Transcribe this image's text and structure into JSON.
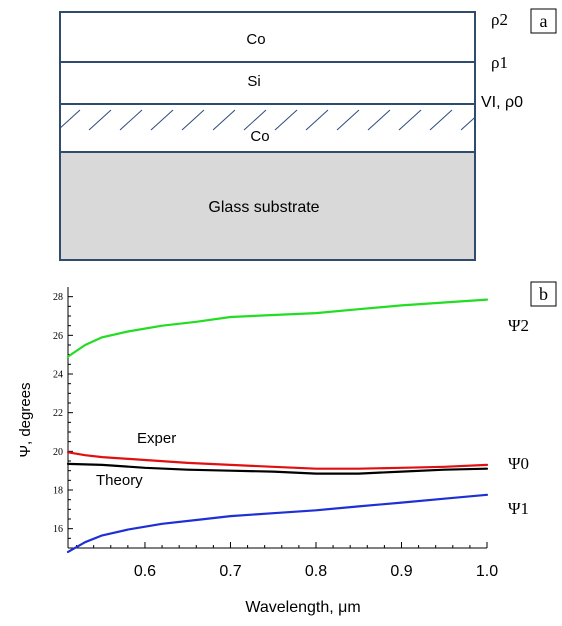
{
  "panel_a": {
    "tag": "a",
    "layers": [
      {
        "name": "Co"
      },
      {
        "name": "Si"
      },
      {
        "name": "Co"
      },
      {
        "name": "Glass substrate"
      }
    ],
    "interface_labels": [
      "ρ2",
      "ρ1",
      "VI, ρ0"
    ],
    "colors": {
      "border": "#2f4b6e",
      "substrate": "#d9d9d9",
      "hatch": "#2a4b7c"
    }
  },
  "panel_b": {
    "tag": "b",
    "ylabel": "Ψ, degrees",
    "xlabel": "Wavelength, μm",
    "annotations": {
      "exper": "Exper",
      "theory": "Theory"
    },
    "series_labels": [
      "Ψ2",
      "Ψ0",
      "Ψ1"
    ]
  },
  "chart_data": {
    "type": "line",
    "title": "",
    "xlabel": "Wavelength, μm",
    "ylabel": "Ψ, degrees",
    "xlim": [
      0.51,
      1.0
    ],
    "ylim": [
      15,
      28.5
    ],
    "x_ticks": [
      "0.6",
      "0.7",
      "0.8",
      "0.9",
      "1.0"
    ],
    "y_ticks": [
      "16",
      "18",
      "20",
      "22",
      "24",
      "26",
      "28"
    ],
    "grid": false,
    "series": [
      {
        "name": "Ψ2",
        "color": "#22dd22",
        "x": [
          0.51,
          0.53,
          0.55,
          0.58,
          0.62,
          0.66,
          0.7,
          0.75,
          0.8,
          0.85,
          0.9,
          0.95,
          1.0
        ],
        "y": [
          24.9,
          25.5,
          25.9,
          26.2,
          26.5,
          26.7,
          26.95,
          27.05,
          27.15,
          27.35,
          27.55,
          27.7,
          27.85
        ]
      },
      {
        "name": "Exper",
        "color": "#e01010",
        "x": [
          0.51,
          0.53,
          0.55,
          0.6,
          0.65,
          0.7,
          0.75,
          0.8,
          0.85,
          0.9,
          0.95,
          1.0
        ],
        "y": [
          19.95,
          19.8,
          19.7,
          19.55,
          19.4,
          19.3,
          19.2,
          19.1,
          19.1,
          19.15,
          19.2,
          19.3
        ]
      },
      {
        "name": "Theory",
        "color": "#000000",
        "x": [
          0.51,
          0.55,
          0.6,
          0.65,
          0.7,
          0.75,
          0.8,
          0.85,
          0.9,
          0.95,
          1.0
        ],
        "y": [
          19.35,
          19.3,
          19.15,
          19.05,
          19.0,
          18.95,
          18.85,
          18.85,
          18.95,
          19.05,
          19.1
        ]
      },
      {
        "name": "Ψ1",
        "color": "#1f2fd6",
        "x": [
          0.51,
          0.53,
          0.55,
          0.58,
          0.62,
          0.66,
          0.7,
          0.75,
          0.8,
          0.85,
          0.9,
          0.95,
          1.0
        ],
        "y": [
          14.8,
          15.3,
          15.65,
          15.95,
          16.25,
          16.45,
          16.65,
          16.8,
          16.95,
          17.15,
          17.35,
          17.55,
          17.75
        ]
      }
    ]
  }
}
